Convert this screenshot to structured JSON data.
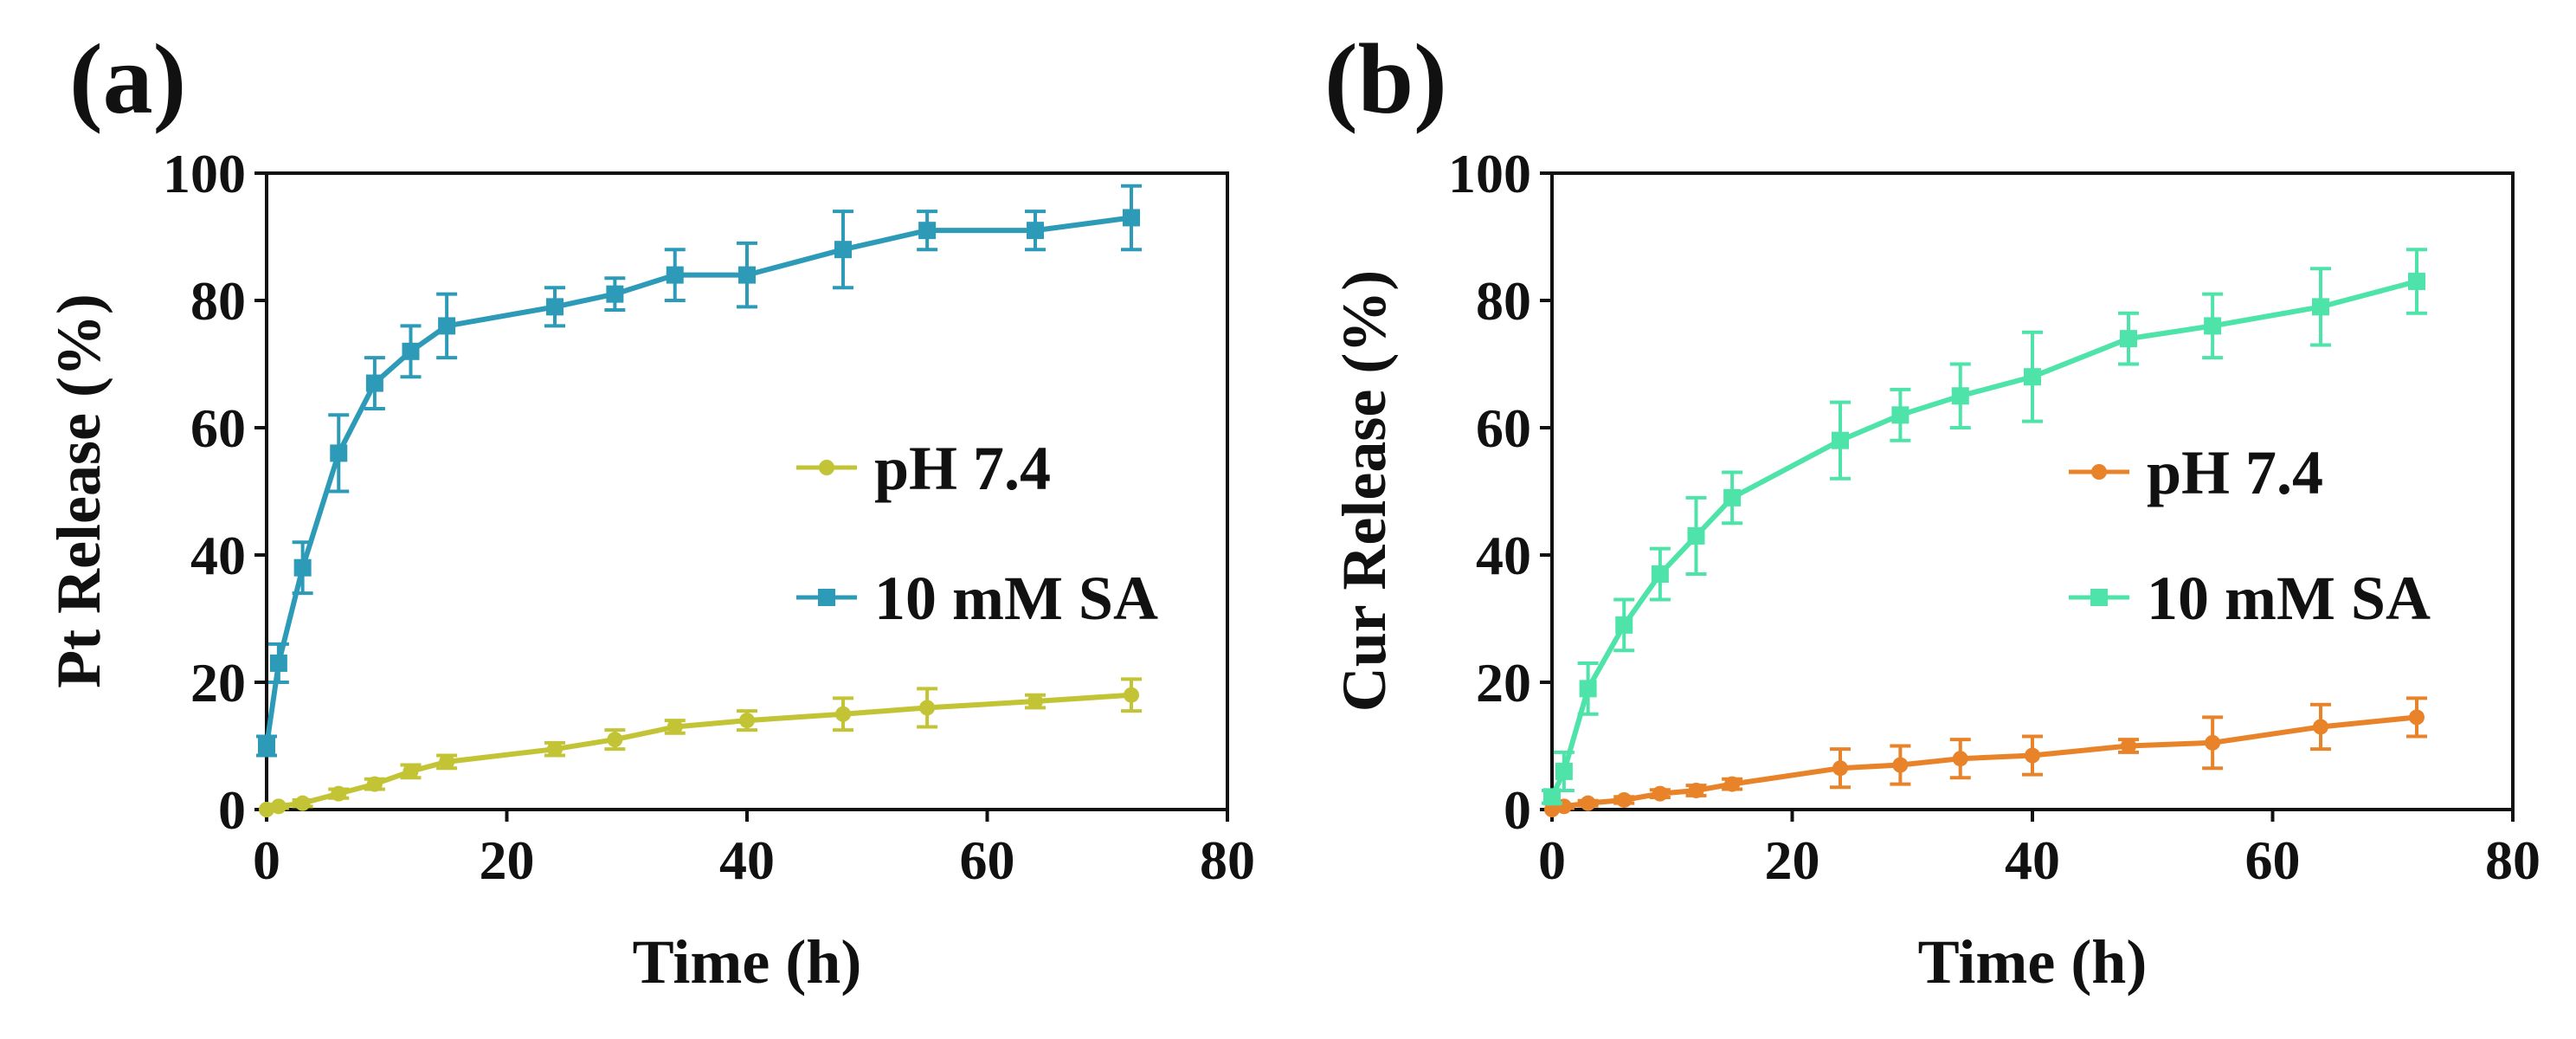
{
  "chart_data": [
    {
      "panel": "(a)",
      "type": "line",
      "title": "",
      "xlabel": "Time (h)",
      "ylabel": "Pt Release (%)",
      "xlim": [
        0,
        80
      ],
      "ylim": [
        0,
        100
      ],
      "xticks": [
        "0",
        "20",
        "40",
        "60",
        "80"
      ],
      "yticks": [
        "0",
        "20",
        "40",
        "60",
        "80",
        "100"
      ],
      "grid": false,
      "legend_position": "center-right",
      "series": [
        {
          "name": "pH 7.4",
          "color": "#c2c436",
          "marker": "circle",
          "x": [
            0,
            1,
            3,
            6,
            9,
            12,
            15,
            24,
            29,
            34,
            40,
            48,
            55,
            64,
            72
          ],
          "y": [
            0,
            0.5,
            1,
            2.5,
            4,
            6,
            7.5,
            9.5,
            11,
            13,
            14,
            15,
            16,
            17,
            18
          ],
          "err": [
            0,
            0.3,
            0.5,
            0.7,
            0.8,
            1,
            1,
            1,
            1.5,
            1,
            1.5,
            2.5,
            3,
            1,
            2.5
          ]
        },
        {
          "name": "10 mM SA",
          "color": "#2d9bb8",
          "marker": "square",
          "x": [
            0,
            1,
            3,
            6,
            9,
            12,
            15,
            24,
            29,
            34,
            40,
            48,
            55,
            64,
            72
          ],
          "y": [
            10,
            23,
            38,
            56,
            67,
            72,
            76,
            79,
            81,
            84,
            84,
            88,
            91,
            91,
            93
          ],
          "err": [
            1.5,
            3,
            4,
            6,
            4,
            4,
            5,
            3,
            2.5,
            4,
            5,
            6,
            3,
            3,
            5
          ]
        }
      ]
    },
    {
      "panel": "(b)",
      "type": "line",
      "title": "",
      "xlabel": "Time (h)",
      "ylabel": "Cur Release (%)",
      "xlim": [
        0,
        80
      ],
      "ylim": [
        0,
        100
      ],
      "xticks": [
        "0",
        "20",
        "40",
        "60",
        "80"
      ],
      "yticks": [
        "0",
        "20",
        "40",
        "60",
        "80",
        "100"
      ],
      "grid": false,
      "legend_position": "center-right",
      "series": [
        {
          "name": "pH 7.4",
          "color": "#e8832a",
          "marker": "circle",
          "x": [
            0,
            1,
            3,
            6,
            9,
            12,
            15,
            24,
            29,
            34,
            40,
            48,
            55,
            64,
            72
          ],
          "y": [
            0,
            0.5,
            1,
            1.5,
            2.5,
            3,
            4,
            6.5,
            7,
            8,
            8.5,
            10,
            10.5,
            13,
            14.5
          ],
          "err": [
            0,
            0.3,
            0.4,
            0.5,
            0.6,
            0.8,
            0.8,
            3,
            3,
            3,
            3,
            1,
            4,
            3.5,
            3
          ]
        },
        {
          "name": "10 mM SA",
          "color": "#4ee3a9",
          "marker": "square",
          "x": [
            0,
            1,
            3,
            6,
            9,
            12,
            15,
            24,
            29,
            34,
            40,
            48,
            55,
            64,
            72
          ],
          "y": [
            2,
            6,
            19,
            29,
            37,
            43,
            49,
            58,
            62,
            65,
            68,
            74,
            76,
            79,
            83
          ],
          "err": [
            1,
            3,
            4,
            4,
            4,
            6,
            4,
            6,
            4,
            5,
            7,
            4,
            5,
            6,
            5
          ]
        }
      ]
    }
  ]
}
